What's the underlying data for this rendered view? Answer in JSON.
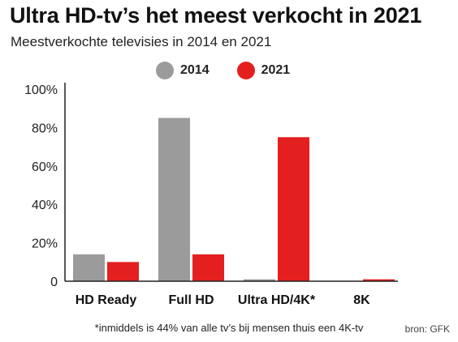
{
  "title": "Ultra HD-tv’s het meest verkocht in 2021",
  "subtitle": "Meestverkochte televisies in 2014 en 2021",
  "footnote": "*inmiddels is 44% van alle tv’s bij mensen thuis een 4K-tv",
  "source": "bron: GFK",
  "colors": {
    "s2014": "#9b9b9b",
    "s2021": "#e3201f",
    "axis": "#222222"
  },
  "chart_data": {
    "type": "bar",
    "title": "Ultra HD-tv’s het meest verkocht in 2021",
    "subtitle": "Meestverkochte televisies in 2014 en 2021",
    "categories": [
      "HD Ready",
      "Full HD",
      "Ultra HD/4K*",
      "8K"
    ],
    "series": [
      {
        "name": "2014",
        "values": [
          14,
          85,
          1,
          0
        ]
      },
      {
        "name": "2021",
        "values": [
          10,
          14,
          75,
          1
        ]
      }
    ],
    "ylim": [
      0,
      100
    ],
    "yticks": [
      0,
      20,
      40,
      60,
      80,
      100
    ],
    "ytick_labels": [
      "0",
      "20%",
      "40%",
      "60%",
      "80%",
      "100%"
    ],
    "legend": "top-center",
    "grid": false
  }
}
